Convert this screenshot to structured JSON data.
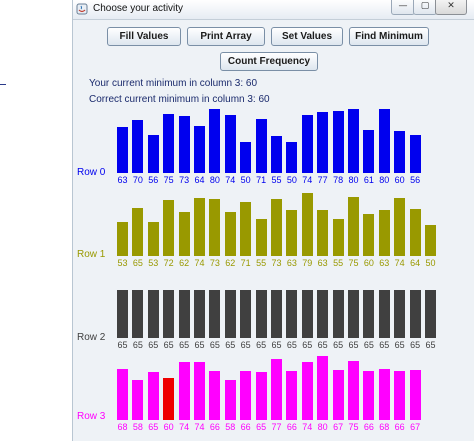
{
  "window": {
    "title": "Choose your activity",
    "controls": {
      "minimize": "—",
      "maximize": "▢",
      "close": "✕"
    }
  },
  "toolbar": {
    "fill_values": "Fill Values",
    "print_array": "Print Array",
    "set_values": "Set Values",
    "find_minimum": "Find Minimum",
    "count_frequency": "Count Frequency"
  },
  "status": {
    "current_min": "Your current minimum in column 3: 60",
    "correct_min": "Correct current minimum in column 3: 60"
  },
  "rows": [
    {
      "label": "Row 0",
      "color": "#0000ee",
      "values": [
        63,
        70,
        56,
        75,
        73,
        64,
        80,
        74,
        50,
        71,
        55,
        50,
        74,
        77,
        78,
        80,
        61,
        80,
        60,
        56
      ]
    },
    {
      "label": "Row 1",
      "color": "#999900",
      "values": [
        53,
        65,
        53,
        72,
        62,
        74,
        73,
        62,
        71,
        55,
        73,
        63,
        79,
        63,
        55,
        75,
        60,
        63,
        74,
        64,
        50
      ]
    },
    {
      "label": "Row 2",
      "color": "#404040",
      "values": [
        65,
        65,
        65,
        65,
        65,
        65,
        65,
        65,
        65,
        65,
        65,
        65,
        65,
        65,
        65,
        65,
        65,
        65,
        65,
        65,
        65
      ]
    },
    {
      "label": "Row 3",
      "color": "#ff00ff",
      "highlight_color": "#ee0000",
      "highlight_index": 3,
      "values": [
        68,
        58,
        65,
        60,
        74,
        74,
        66,
        58,
        66,
        65,
        77,
        66,
        74,
        80,
        67,
        75,
        66,
        68,
        66,
        67
      ]
    }
  ]
}
